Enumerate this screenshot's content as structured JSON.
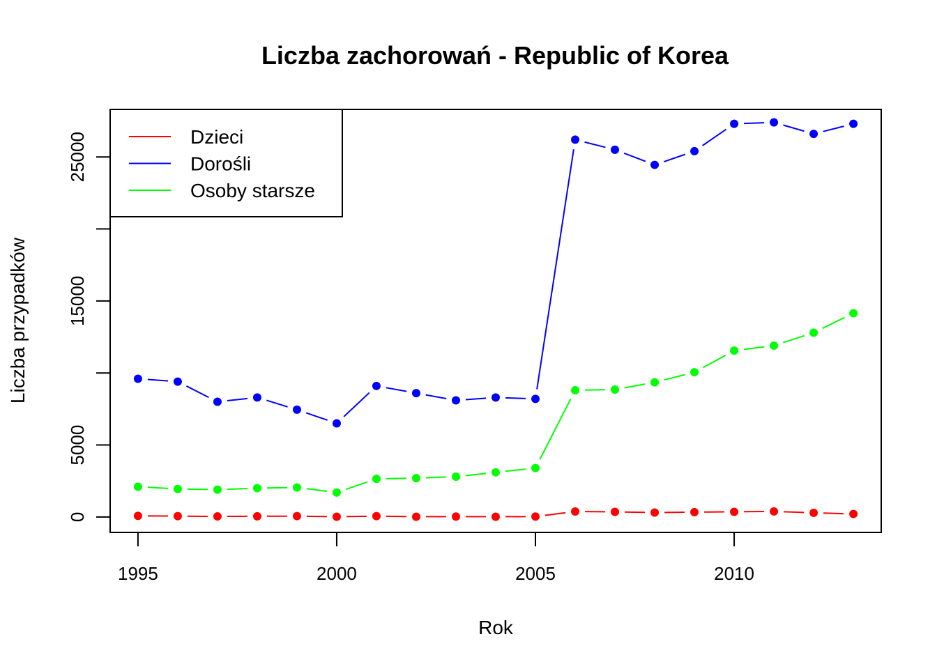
{
  "chart_data": {
    "type": "line",
    "title": "Liczba zachorowań -  Republic of Korea",
    "xlabel": "Rok",
    "ylabel": "Liczba przypadków",
    "xlim": [
      1994.3,
      2013.7
    ],
    "ylim": [
      -1070,
      28300
    ],
    "x_ticks": [
      1995,
      2000,
      2005,
      2010
    ],
    "y_ticks": [
      0,
      5000,
      10000,
      15000,
      20000,
      25000
    ],
    "y_tick_labels": [
      "0",
      "5000",
      "",
      "15000",
      "",
      "25000"
    ],
    "grid": false,
    "legend_position": "top-left",
    "x": [
      1995,
      1996,
      1997,
      1998,
      1999,
      2000,
      2001,
      2002,
      2003,
      2004,
      2005,
      2006,
      2007,
      2008,
      2009,
      2010,
      2011,
      2012,
      2013
    ],
    "series": [
      {
        "name": "Dzieci",
        "color": "#ff0000",
        "values": [
          80,
          60,
          40,
          50,
          60,
          20,
          60,
          20,
          30,
          20,
          30,
          380,
          360,
          310,
          340,
          360,
          390,
          290,
          210
        ]
      },
      {
        "name": "Dorośli",
        "color": "#0000ff",
        "values": [
          9600,
          9400,
          8000,
          8300,
          7450,
          6500,
          9100,
          8600,
          8100,
          8300,
          8200,
          26200,
          25500,
          24450,
          25400,
          27300,
          27400,
          26600,
          27300
        ]
      },
      {
        "name": "Osoby starsze",
        "color": "#00ff00",
        "values": [
          2100,
          1950,
          1900,
          2000,
          2050,
          1700,
          2650,
          2700,
          2800,
          3100,
          3400,
          8800,
          8850,
          9350,
          10050,
          11550,
          11900,
          12800,
          14150
        ]
      }
    ]
  }
}
